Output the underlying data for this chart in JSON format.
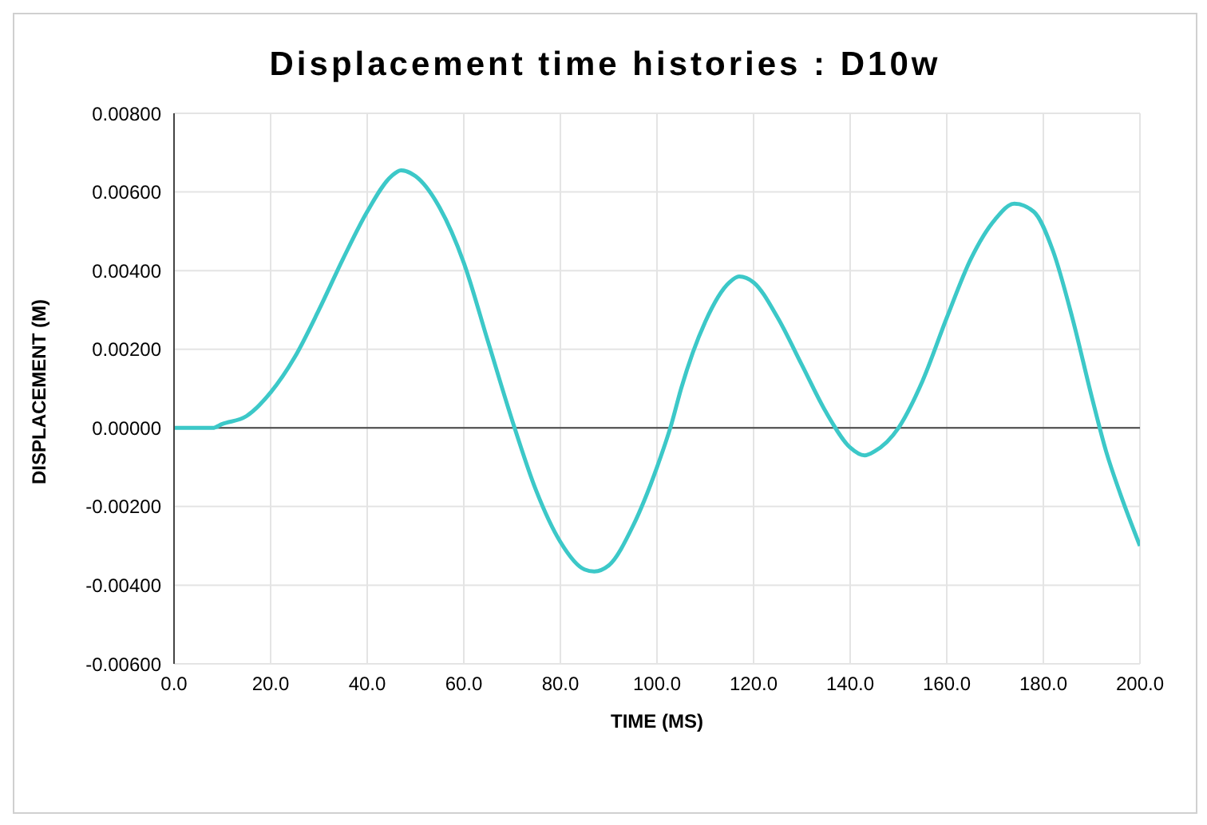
{
  "chart_data": {
    "type": "line",
    "title": "Displacement time histories : D10w",
    "xlabel": "TIME (MS)",
    "ylabel": "DISPLACEMENT (M)",
    "x": [
      0,
      5,
      8,
      10,
      15,
      20,
      25,
      30,
      35,
      40,
      45,
      47,
      50,
      55,
      60,
      65,
      70,
      75,
      80,
      85,
      87,
      90,
      95,
      100,
      103,
      105,
      110,
      115,
      117,
      120,
      125,
      130,
      135,
      140,
      143,
      145,
      150,
      155,
      160,
      165,
      170,
      174,
      178,
      182,
      186,
      190,
      193,
      196,
      200
    ],
    "series": [
      {
        "color": "#3cc8c8",
        "values": [
          0,
          0,
          0,
          0.0001,
          0.0003,
          0.0009,
          0.0018,
          0.003,
          0.0043,
          0.0055,
          0.0064,
          0.00655,
          0.0064,
          0.0056,
          0.0042,
          0.0022,
          0.0002,
          -0.0016,
          -0.0029,
          -0.0036,
          -0.00365,
          -0.0035,
          -0.0025,
          -0.001,
          0.0001,
          0.001,
          0.0027,
          0.0037,
          0.00385,
          0.0037,
          0.0028,
          0.0016,
          0.0004,
          -0.0005,
          -0.0007,
          -0.0006,
          0,
          0.0012,
          0.0028,
          0.0043,
          0.0053,
          0.0057,
          0.0055,
          0.0045,
          0.0028,
          0.0008,
          -0.0006,
          -0.0017,
          -0.003
        ]
      }
    ],
    "xlim": [
      0,
      200
    ],
    "xticks": [
      {
        "value": 0,
        "label": "0.0"
      },
      {
        "value": 20,
        "label": "20.0"
      },
      {
        "value": 40,
        "label": "40.0"
      },
      {
        "value": 60,
        "label": "60.0"
      },
      {
        "value": 80,
        "label": "80.0"
      },
      {
        "value": 100,
        "label": "100.0"
      },
      {
        "value": 120,
        "label": "120.0"
      },
      {
        "value": 140,
        "label": "140.0"
      },
      {
        "value": 160,
        "label": "160.0"
      },
      {
        "value": 180,
        "label": "180.0"
      },
      {
        "value": 200,
        "label": "200.0"
      }
    ],
    "ylim": [
      -0.006,
      0.008
    ],
    "yticks": [
      {
        "value": -0.006,
        "label": "-0.00600"
      },
      {
        "value": -0.004,
        "label": "-0.00400"
      },
      {
        "value": -0.002,
        "label": "-0.00200"
      },
      {
        "value": 0,
        "label": "0.00000"
      },
      {
        "value": 0.002,
        "label": "0.00200"
      },
      {
        "value": 0.004,
        "label": "0.00400"
      },
      {
        "value": 0.006,
        "label": "0.00600"
      },
      {
        "value": 0.008,
        "label": "0.00800"
      }
    ],
    "grid": true,
    "marker": "none",
    "line_style": "solid",
    "legend": false
  }
}
